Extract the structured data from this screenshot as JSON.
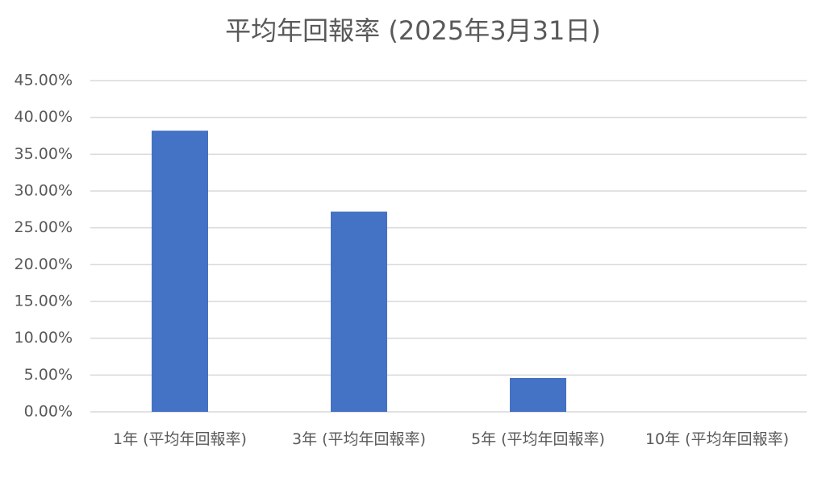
{
  "chart_data": {
    "type": "bar",
    "title": "平均年回報率 (2025年3月31日)",
    "categories": [
      "1年 (平均年回報率)",
      "3年 (平均年回報率)",
      "5年 (平均年回報率)",
      "10年 (平均年回報率)"
    ],
    "values": [
      38.2,
      27.2,
      4.6,
      null
    ],
    "color": "#4472c4",
    "ylim": [
      0,
      45
    ],
    "yticks": [
      {
        "value": 0,
        "label": "0.00%"
      },
      {
        "value": 5,
        "label": "5.00%"
      },
      {
        "value": 10,
        "label": "10.00%"
      },
      {
        "value": 15,
        "label": "15.00%"
      },
      {
        "value": 20,
        "label": "20.00%"
      },
      {
        "value": 25,
        "label": "25.00%"
      },
      {
        "value": 30,
        "label": "30.00%"
      },
      {
        "value": 35,
        "label": "35.00%"
      },
      {
        "value": 40,
        "label": "40.00%"
      },
      {
        "value": 45,
        "label": "45.00%"
      }
    ],
    "grid": true
  }
}
